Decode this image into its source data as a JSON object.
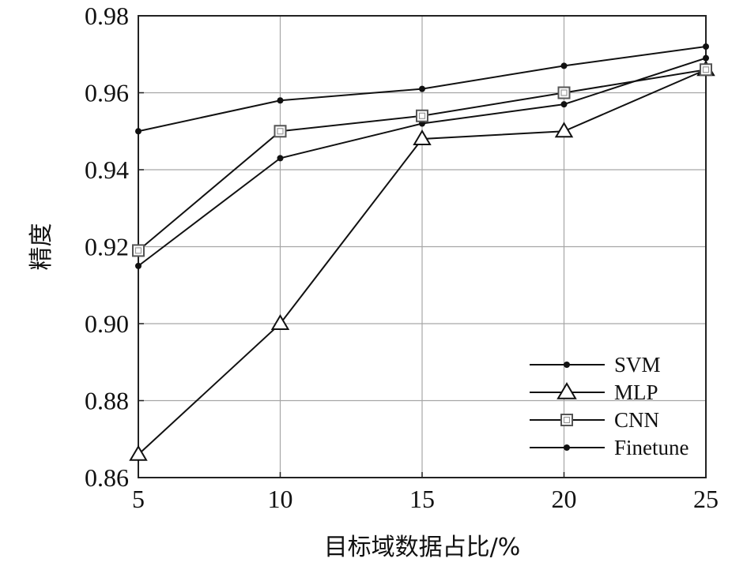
{
  "chart_data": {
    "type": "line",
    "xlabel": "目标域数据占比/%",
    "ylabel": "精度",
    "x": [
      5,
      10,
      15,
      20,
      25
    ],
    "x_tick_labels": [
      "5",
      "10",
      "15",
      "20",
      "25"
    ],
    "y_tick_labels": [
      "0.98",
      "0.96",
      "0.94",
      "0.92",
      "0.90",
      "0.88",
      "0.86"
    ],
    "xlim": [
      5,
      25
    ],
    "ylim": [
      0.86,
      0.98
    ],
    "grid": true,
    "legend_position": "bottom-right",
    "series": [
      {
        "name": "SVM",
        "marker": "dot",
        "values": [
          0.915,
          0.943,
          0.952,
          0.957,
          0.969
        ]
      },
      {
        "name": "MLP",
        "marker": "triangle",
        "values": [
          0.866,
          0.9,
          0.948,
          0.95,
          0.966
        ]
      },
      {
        "name": "CNN",
        "marker": "square",
        "values": [
          0.919,
          0.95,
          0.954,
          0.96,
          0.966
        ]
      },
      {
        "name": "Finetune",
        "marker": "dot",
        "values": [
          0.95,
          0.958,
          0.961,
          0.967,
          0.972
        ]
      }
    ]
  }
}
